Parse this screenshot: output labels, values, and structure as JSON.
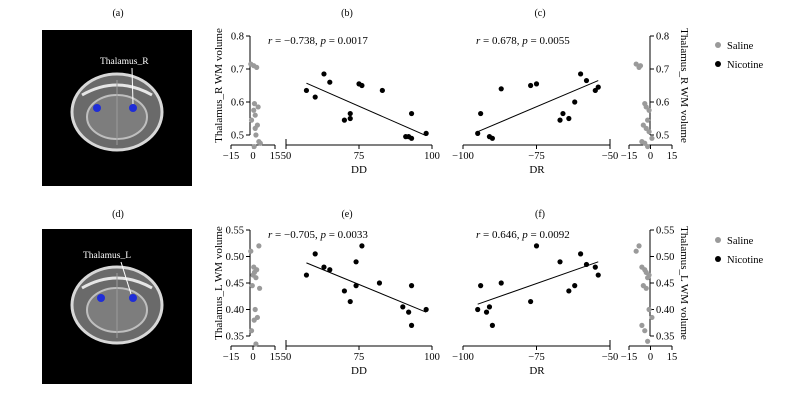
{
  "colors": {
    "nicotine": "#000000",
    "saline": "#9a9a9a",
    "roi": "#1f2dd8",
    "background": "#ffffff"
  },
  "labels": {
    "panel_a": "(a)",
    "panel_b": "(b)",
    "panel_c": "(c)",
    "panel_d": "(d)",
    "panel_e": "(e)",
    "panel_f": "(f)",
    "brain_top": "Thalamus_R",
    "brain_bottom": "Thalamus_L"
  },
  "chart_data": [
    {
      "id": "b",
      "type": "scatter",
      "xlabel": "DD",
      "ylabel": "Thalamus_R WM volume",
      "xlim": [
        -15,
        100
      ],
      "ylim": [
        0.45,
        0.8
      ],
      "xticks": [
        "−15",
        "0",
        "15",
        "50",
        "75",
        "100"
      ],
      "yticks": [
        "0.5",
        "0.6",
        "0.7",
        "0.8"
      ],
      "stat": {
        "r": "−0.738",
        "p": "0.0017"
      },
      "saline": {
        "x": [
          -1.5,
          0.5,
          2.5,
          1,
          3.5,
          0.5,
          1.5,
          -1,
          3,
          1.5,
          4,
          5,
          0.8,
          2
        ],
        "y": [
          0.715,
          0.71,
          0.705,
          0.595,
          0.585,
          0.575,
          0.56,
          0.545,
          0.53,
          0.52,
          0.48,
          0.475,
          0.465,
          0.5
        ]
      },
      "nicotine": {
        "x": [
          57,
          60,
          63,
          65,
          70,
          72,
          72,
          75,
          76,
          83,
          91,
          92,
          93,
          93,
          98
        ],
        "y": [
          0.635,
          0.615,
          0.685,
          0.66,
          0.545,
          0.565,
          0.55,
          0.655,
          0.65,
          0.635,
          0.495,
          0.495,
          0.49,
          0.565,
          0.505
        ]
      },
      "fit": {
        "x": [
          57,
          98
        ],
        "y": [
          0.657,
          0.498
        ]
      }
    },
    {
      "id": "c",
      "type": "scatter",
      "xlabel": "DR",
      "ylabel": "Thalamus_R WM volume",
      "xlim": [
        -100,
        0
      ],
      "ylim": [
        0.45,
        0.8
      ],
      "xticks": [
        "−100",
        "−75",
        "−50",
        "0",
        "15",
        "−15"
      ],
      "yticks": [
        "0.5",
        "0.6",
        "0.7",
        "0.8"
      ],
      "stat": {
        "r": "0.678",
        "p": "0.0055"
      },
      "saline": {
        "x": [
          -10,
          -8,
          -7,
          -4,
          -3,
          -1,
          -2,
          -5,
          -3,
          -1,
          1,
          -6,
          -4,
          -2
        ],
        "y": [
          0.715,
          0.705,
          0.71,
          0.595,
          0.585,
          0.575,
          0.545,
          0.53,
          0.52,
          0.51,
          0.49,
          0.48,
          0.475,
          0.465
        ]
      },
      "nicotine": {
        "x": [
          -95,
          -94,
          -91,
          -90,
          -87,
          -77,
          -75,
          -67,
          -66,
          -64,
          -62,
          -60,
          -58,
          -55,
          -54
        ],
        "y": [
          0.505,
          0.565,
          0.495,
          0.49,
          0.64,
          0.65,
          0.655,
          0.545,
          0.565,
          0.55,
          0.6,
          0.685,
          0.665,
          0.635,
          0.645
        ]
      },
      "fit": {
        "x": [
          -95,
          -54
        ],
        "y": [
          0.51,
          0.665
        ]
      }
    },
    {
      "id": "e",
      "type": "scatter",
      "xlabel": "DD",
      "ylabel": "Thalamus_L WM volume",
      "xlim": [
        -15,
        100
      ],
      "ylim": [
        0.33,
        0.55
      ],
      "xticks": [
        "−15",
        "0",
        "15",
        "50",
        "75",
        "100"
      ],
      "yticks": [
        "0.35",
        "0.40",
        "0.45",
        "0.50",
        "0.55"
      ],
      "stat": {
        "r": "−0.705",
        "p": "0.0033"
      },
      "saline": {
        "x": [
          -1.5,
          4,
          0.5,
          2.5,
          1,
          0,
          2,
          -0.5,
          4.5,
          1.5,
          3,
          0.8,
          -1,
          2
        ],
        "y": [
          0.51,
          0.52,
          0.48,
          0.475,
          0.47,
          0.465,
          0.46,
          0.445,
          0.44,
          0.4,
          0.385,
          0.38,
          0.36,
          0.335
        ]
      },
      "nicotine": {
        "x": [
          57,
          60,
          63,
          65,
          70,
          72,
          74,
          74,
          76,
          82,
          90,
          92,
          93,
          93,
          98
        ],
        "y": [
          0.465,
          0.505,
          0.48,
          0.475,
          0.435,
          0.415,
          0.49,
          0.445,
          0.52,
          0.45,
          0.405,
          0.395,
          0.445,
          0.37,
          0.4
        ]
      },
      "fit": {
        "x": [
          57,
          98
        ],
        "y": [
          0.488,
          0.395
        ]
      }
    },
    {
      "id": "f",
      "type": "scatter",
      "xlabel": "DR",
      "ylabel": "Thalamus_L WM volume",
      "xlim": [
        -100,
        0
      ],
      "ylim": [
        0.33,
        0.55
      ],
      "xticks": [
        "−100",
        "−75",
        "−50",
        "0",
        "15",
        "−15"
      ],
      "yticks": [
        "0.35",
        "0.40",
        "0.45",
        "0.50",
        "0.55"
      ],
      "stat": {
        "r": "0.646",
        "p": "0.0092"
      },
      "saline": {
        "x": [
          -10,
          -8,
          -6,
          -4,
          -3,
          -1,
          -2,
          -5,
          -3,
          -1,
          1,
          -6,
          -4,
          -2
        ],
        "y": [
          0.51,
          0.52,
          0.48,
          0.475,
          0.47,
          0.465,
          0.46,
          0.445,
          0.44,
          0.4,
          0.385,
          0.37,
          0.36,
          0.34
        ]
      },
      "nicotine": {
        "x": [
          -95,
          -94,
          -92,
          -91,
          -90,
          -87,
          -77,
          -75,
          -67,
          -64,
          -62,
          -60,
          -58,
          -55,
          -54
        ],
        "y": [
          0.4,
          0.445,
          0.395,
          0.405,
          0.37,
          0.45,
          0.415,
          0.52,
          0.49,
          0.435,
          0.445,
          0.505,
          0.485,
          0.48,
          0.465
        ]
      },
      "fit": {
        "x": [
          -95,
          -54
        ],
        "y": [
          0.41,
          0.49
        ]
      }
    }
  ],
  "legend": [
    {
      "label": "Saline",
      "color": "#9a9a9a"
    },
    {
      "label": "Nicotine",
      "color": "#000000"
    }
  ]
}
